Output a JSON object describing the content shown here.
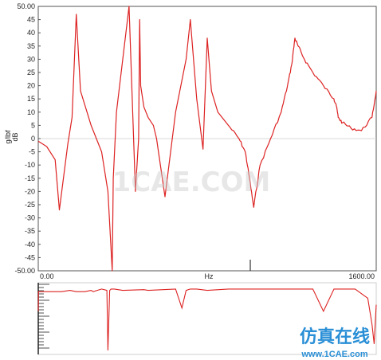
{
  "chart_data": [
    {
      "type": "line",
      "title": "",
      "xlabel": "Hz",
      "ylabel_lines": [
        "g/lbf",
        "dB"
      ],
      "xlim": [
        0,
        1600
      ],
      "ylim": [
        -50,
        50
      ],
      "yticks": [
        "50.00",
        "45",
        "40",
        "35",
        "30",
        "25",
        "20",
        "15",
        "10",
        "5",
        "0",
        "-5",
        "-10",
        "-15",
        "-20",
        "-25",
        "-30",
        "-35",
        "-40",
        "-45",
        "-50.00"
      ],
      "xtick_labels": [
        "0.00",
        "Hz",
        "1600.00"
      ],
      "grid": false,
      "colors": {
        "series": "#dd2222",
        "zero_line": "#d8d8d8",
        "axis": "#555555"
      },
      "series": [
        {
          "x": [
            0,
            40,
            80,
            100,
            140,
            160,
            180,
            200,
            250,
            300,
            330,
            350,
            355,
            370,
            400,
            430,
            460,
            475,
            480,
            485,
            500,
            520,
            545,
            560,
            600,
            650,
            700,
            720,
            735,
            750,
            780,
            800,
            820,
            850,
            900,
            950,
            980,
            1000,
            1020,
            1050,
            1100,
            1150,
            1180,
            1200,
            1215,
            1230,
            1260,
            1300,
            1350,
            1400,
            1410,
            1420,
            1440,
            1480,
            1530,
            1580,
            1600
          ],
          "y": [
            -1,
            -3,
            -8,
            -27,
            -2,
            8,
            47,
            18,
            5,
            -5,
            -20,
            -50,
            -15,
            10,
            30,
            50,
            -20,
            0,
            45,
            20,
            12,
            8,
            5,
            0,
            -22,
            10,
            30,
            45,
            30,
            15,
            -4,
            38,
            18,
            10,
            5,
            0,
            -5,
            -15,
            -26,
            -10,
            0,
            10,
            20,
            28,
            38,
            35,
            30,
            25,
            20,
            15,
            13,
            8,
            6,
            4,
            3,
            8,
            18
          ]
        }
      ]
    },
    {
      "type": "line",
      "title": "",
      "xlim": [
        0,
        1600
      ],
      "ylim": [
        0,
        1
      ],
      "grid": false,
      "series": [
        {
          "x": [
            0,
            1,
            110,
            150,
            180,
            220,
            250,
            260,
            300,
            325,
            330,
            338,
            345,
            360,
            400,
            500,
            520,
            650,
            680,
            700,
            720,
            730,
            750,
            800,
            900,
            1000,
            1100,
            1200,
            1300,
            1350,
            1400,
            1500,
            1560,
            1580,
            1590,
            1600
          ],
          "y": [
            0.4,
            0.1,
            0.1,
            0.08,
            0.1,
            0.1,
            0.08,
            0.1,
            0.06,
            0.08,
            1.0,
            0.08,
            0.06,
            0.06,
            0.08,
            0.07,
            0.08,
            0.06,
            0.35,
            0.08,
            0.06,
            0.06,
            0.06,
            0.08,
            0.06,
            0.06,
            0.06,
            0.06,
            0.06,
            0.4,
            0.06,
            0.06,
            0.2,
            0.6,
            0.9,
            0.3
          ]
        }
      ]
    }
  ],
  "watermark": {
    "main": "1CAE.COM",
    "cn": "仿真在线",
    "url": "www.1CAE.com"
  }
}
